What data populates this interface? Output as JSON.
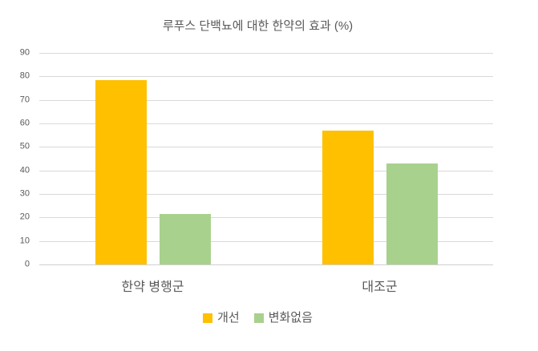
{
  "chart_data": {
    "type": "bar",
    "title": "루푸스 단백뇨에 대한 한약의 효과 (%)",
    "categories": [
      "한약 병행군",
      "대조군"
    ],
    "series": [
      {
        "name": "개선",
        "color": "#FFC000",
        "values": [
          78.5,
          57
        ]
      },
      {
        "name": "변화없음",
        "color": "#A9D18E",
        "values": [
          21.5,
          43
        ]
      }
    ],
    "xlabel": "",
    "ylabel": "",
    "ylim": [
      0,
      90
    ],
    "yticks": [
      0,
      10,
      20,
      30,
      40,
      50,
      60,
      70,
      80,
      90
    ],
    "grid": true,
    "legend_position": "bottom"
  },
  "colors": {
    "background": "#FFFFFF",
    "text": "#595959",
    "gridline": "#D9D9D9",
    "axis_line": "#D0D0D0"
  }
}
